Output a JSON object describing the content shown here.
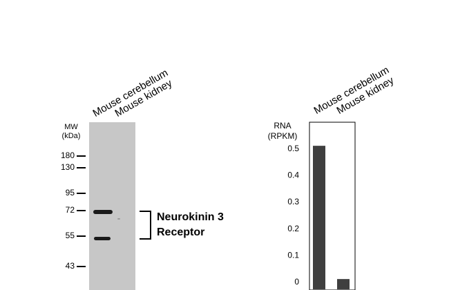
{
  "western_blot": {
    "lanes": [
      "Mouse cerebellum",
      "Mouse kidney"
    ],
    "mw_title": "MW",
    "mw_unit": "(kDa)",
    "mw_markers": [
      "180",
      "130",
      "95",
      "72",
      "55",
      "43"
    ],
    "target_label_line1": "Neurokinin 3",
    "target_label_line2": "Receptor",
    "band_color": "#1a1a1a",
    "membrane_color": "#c7c7c7"
  },
  "chart_data": {
    "type": "bar",
    "categories": [
      "Mouse cerebellum",
      "Mouse kidney"
    ],
    "values": [
      0.51,
      0.01
    ],
    "title": "",
    "xlabel": "",
    "ylabel_line1": "RNA",
    "ylabel_line2": "(RPKM)",
    "ylim": [
      0,
      0.5
    ],
    "yticks": [
      "0",
      "0.1",
      "0.2",
      "0.3",
      "0.4",
      "0.5"
    ],
    "bar_color": "#3f3f3f",
    "grid": false
  }
}
